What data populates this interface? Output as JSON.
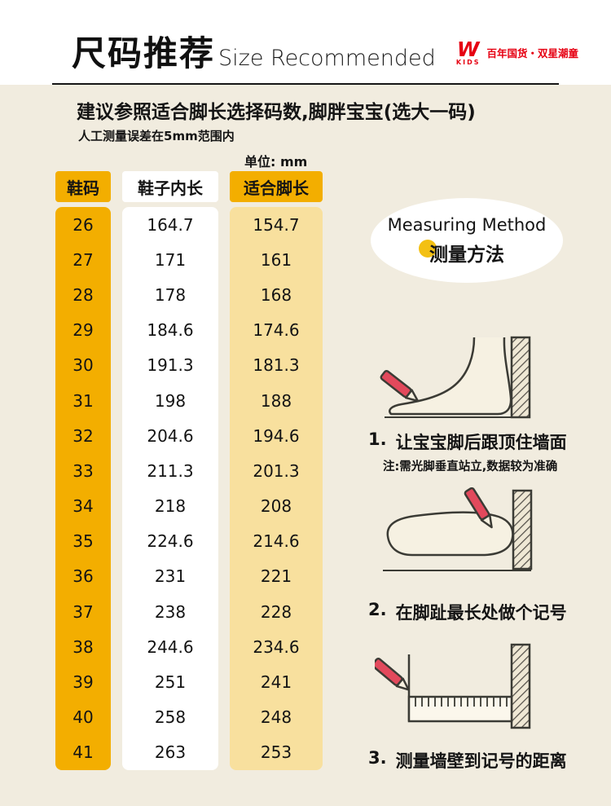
{
  "header": {
    "title_cn": "尺码推荐",
    "title_en": "Size Recommended",
    "brand": {
      "mark": "W",
      "sub": "KIDS",
      "tagline": "百年国货・双星潮童"
    }
  },
  "intro": {
    "line1": "建议参照适合脚长选择码数,脚胖宝宝(选大一码)",
    "line2": "人工测量误差在5mm范围内",
    "unit": "单位: mm"
  },
  "table": {
    "headers": [
      "鞋码",
      "鞋子内长",
      "适合脚长"
    ]
  },
  "measuring": {
    "title_en": "Measuring Method",
    "title_cn": "测量方法",
    "steps": [
      {
        "num": "1.",
        "text": "让宝宝脚后跟顶住墙面",
        "note": "注:需光脚垂直站立,数据较为准确"
      },
      {
        "num": "2.",
        "text": "在脚趾最长处做个记号"
      },
      {
        "num": "3.",
        "text": "测量墙壁到记号的距离"
      }
    ]
  },
  "colors": {
    "gold": "#f3ae00",
    "light_yellow": "#f8e09e",
    "background": "#f1ecdf",
    "brand_red": "#e60012",
    "dot_yellow": "#f3c013",
    "pencil_red": "#e2495c"
  },
  "chart_data": {
    "type": "table",
    "title": "尺码推荐 Size Recommended",
    "columns": [
      "鞋码",
      "鞋子内长",
      "适合脚长"
    ],
    "unit": "mm",
    "rows": [
      [
        26,
        164.7,
        154.7
      ],
      [
        27,
        171,
        161
      ],
      [
        28,
        178,
        168
      ],
      [
        29,
        184.6,
        174.6
      ],
      [
        30,
        191.3,
        181.3
      ],
      [
        31,
        198,
        188
      ],
      [
        32,
        204.6,
        194.6
      ],
      [
        33,
        211.3,
        201.3
      ],
      [
        34,
        218,
        208
      ],
      [
        35,
        224.6,
        214.6
      ],
      [
        36,
        231,
        221
      ],
      [
        37,
        238,
        228
      ],
      [
        38,
        244.6,
        234.6
      ],
      [
        39,
        251,
        241
      ],
      [
        40,
        258,
        248
      ],
      [
        41,
        263,
        253
      ]
    ]
  }
}
